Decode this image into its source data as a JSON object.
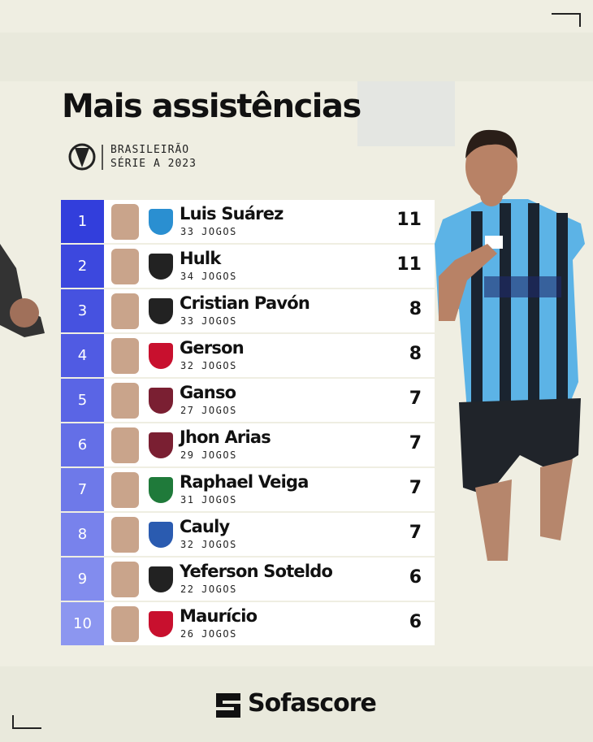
{
  "header": {
    "title": "Mais assistências",
    "league": [
      "BRASILEIRÃO",
      "SÉRIE A 2023"
    ]
  },
  "table": {
    "rows": [
      {
        "rank": "1",
        "name": "Luis Suárez",
        "games": "33 JOGOS",
        "assists": 11
      },
      {
        "rank": "2",
        "name": "Hulk",
        "games": "34 JOGOS",
        "assists": 11
      },
      {
        "rank": "3",
        "name": "Cristian Pavón",
        "games": "33 JOGOS",
        "assists": 8
      },
      {
        "rank": "4",
        "name": "Gerson",
        "games": "32 JOGOS",
        "assists": 8
      },
      {
        "rank": "5",
        "name": "Ganso",
        "games": "27 JOGOS",
        "assists": 7
      },
      {
        "rank": "6",
        "name": "Jhon Arias",
        "games": "29 JOGOS",
        "assists": 7
      },
      {
        "rank": "7",
        "name": "Raphael Veiga",
        "games": "31 JOGOS",
        "assists": 7
      },
      {
        "rank": "8",
        "name": "Cauly",
        "games": "32 JOGOS",
        "assists": 7
      },
      {
        "rank": "9",
        "name": "Yeferson Soteldo",
        "games": "22 JOGOS",
        "assists": 6
      },
      {
        "rank": "10",
        "name": "Maurício",
        "games": "26 JOGOS",
        "assists": 6
      }
    ]
  },
  "footer": {
    "brand": "Sofascore"
  }
}
